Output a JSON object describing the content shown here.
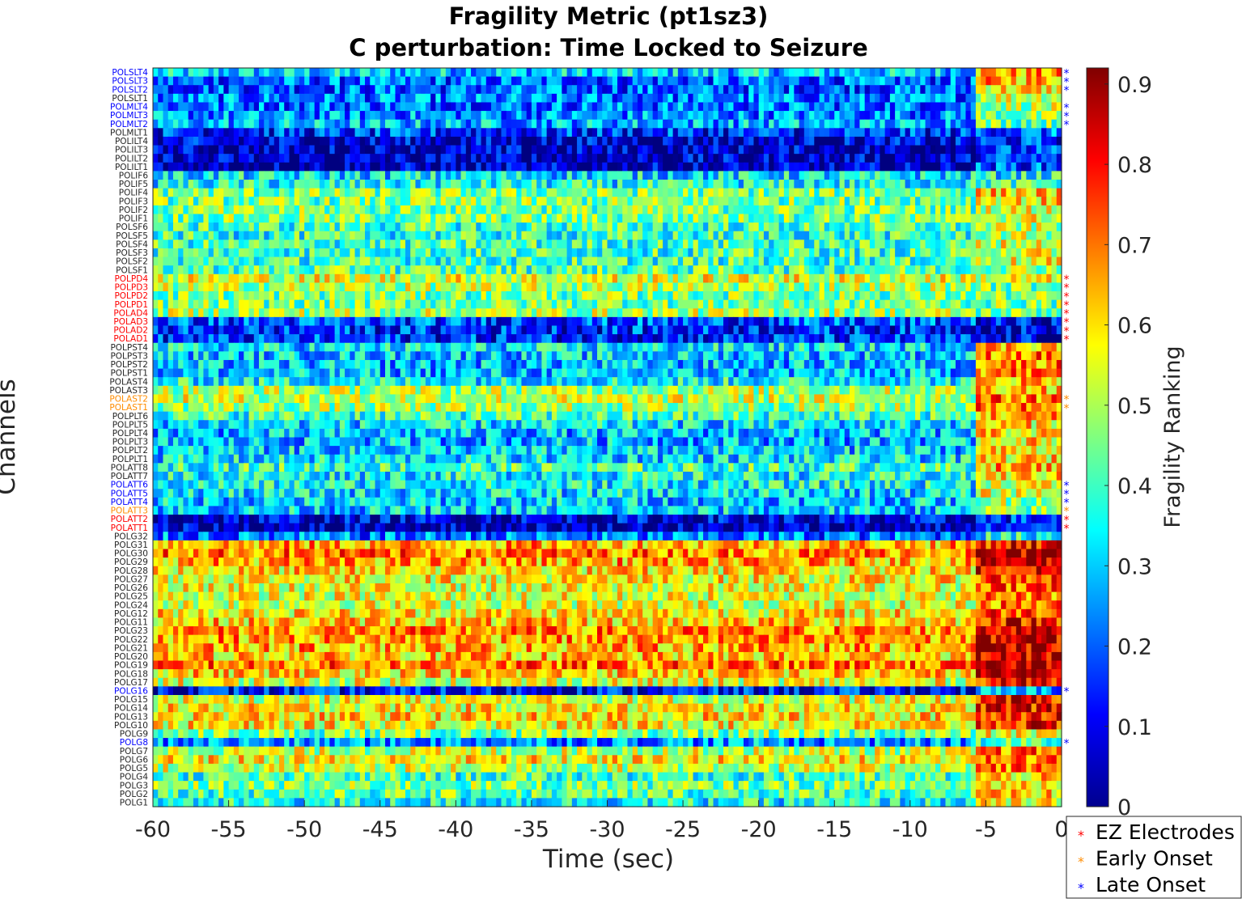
{
  "chart_data": {
    "type": "heatmap",
    "title": [
      "Fragility Metric (pt1sz3)",
      "C perturbation:  Time Locked to Seizure"
    ],
    "xlabel": "Time (sec)",
    "ylabel": "Channels",
    "x_range": [
      -60,
      0
    ],
    "x_ticks": [
      "-60",
      "-55",
      "-50",
      "-45",
      "-40",
      "-35",
      "-30",
      "-25",
      "-20",
      "-15",
      "-10",
      "-5",
      "0"
    ],
    "colorbar": {
      "label": "Fragility Ranking",
      "colormap": "jet",
      "range": [
        0,
        0.92
      ],
      "ticks": [
        "0",
        "0.1",
        "0.2",
        "0.3",
        "0.4",
        "0.5",
        "0.6",
        "0.7",
        "0.8",
        "0.9"
      ]
    },
    "seizure_onset_time": -5.5,
    "channels": [
      {
        "name": "POLSLT4",
        "group": "late",
        "pre": 0.3,
        "post": 0.65
      },
      {
        "name": "POLSLT3",
        "group": "late",
        "pre": 0.2,
        "post": 0.65
      },
      {
        "name": "POLSLT2",
        "group": "late",
        "pre": 0.2,
        "post": 0.6
      },
      {
        "name": "POLSLT1",
        "group": "none",
        "pre": 0.22,
        "post": 0.55
      },
      {
        "name": "POLMLT4",
        "group": "late",
        "pre": 0.22,
        "post": 0.5
      },
      {
        "name": "POLMLT3",
        "group": "late",
        "pre": 0.24,
        "post": 0.45
      },
      {
        "name": "POLMLT2",
        "group": "late",
        "pre": 0.28,
        "post": 0.45
      },
      {
        "name": "POLMLT1",
        "group": "none",
        "pre": 0.15,
        "post": 0.2
      },
      {
        "name": "POLILT4",
        "group": "none",
        "pre": 0.08,
        "post": 0.15
      },
      {
        "name": "POLILT3",
        "group": "none",
        "pre": 0.06,
        "post": 0.15
      },
      {
        "name": "POLILT2",
        "group": "none",
        "pre": 0.06,
        "post": 0.15
      },
      {
        "name": "POLILT1",
        "group": "none",
        "pre": 0.05,
        "post": 0.18
      },
      {
        "name": "POLIF6",
        "group": "none",
        "pre": 0.32,
        "post": 0.35
      },
      {
        "name": "POLIF5",
        "group": "none",
        "pre": 0.35,
        "post": 0.4
      },
      {
        "name": "POLIF4",
        "group": "none",
        "pre": 0.45,
        "post": 0.62
      },
      {
        "name": "POLIF3",
        "group": "none",
        "pre": 0.45,
        "post": 0.6
      },
      {
        "name": "POLIF2",
        "group": "none",
        "pre": 0.45,
        "post": 0.55
      },
      {
        "name": "POLIF1",
        "group": "none",
        "pre": 0.45,
        "post": 0.55
      },
      {
        "name": "POLSF6",
        "group": "none",
        "pre": 0.4,
        "post": 0.5
      },
      {
        "name": "POLSF5",
        "group": "none",
        "pre": 0.38,
        "post": 0.5
      },
      {
        "name": "POLSF4",
        "group": "none",
        "pre": 0.4,
        "post": 0.55
      },
      {
        "name": "POLSF3",
        "group": "none",
        "pre": 0.4,
        "post": 0.55
      },
      {
        "name": "POLSF2",
        "group": "none",
        "pre": 0.4,
        "post": 0.55
      },
      {
        "name": "POLSF1",
        "group": "none",
        "pre": 0.42,
        "post": 0.5
      },
      {
        "name": "POLPD4",
        "group": "ez",
        "pre": 0.55,
        "post": 0.55
      },
      {
        "name": "POLPD3",
        "group": "ez",
        "pre": 0.5,
        "post": 0.45
      },
      {
        "name": "POLPD2",
        "group": "ez",
        "pre": 0.45,
        "post": 0.45
      },
      {
        "name": "POLPD1",
        "group": "ez",
        "pre": 0.45,
        "post": 0.45
      },
      {
        "name": "POLAD4",
        "group": "ez",
        "pre": 0.5,
        "post": 0.45
      },
      {
        "name": "POLAD3",
        "group": "ez",
        "pre": 0.18,
        "post": 0.1
      },
      {
        "name": "POLAD2",
        "group": "ez",
        "pre": 0.15,
        "post": 0.1
      },
      {
        "name": "POLAD1",
        "group": "ez",
        "pre": 0.15,
        "post": 0.08
      },
      {
        "name": "POLPST4",
        "group": "none",
        "pre": 0.32,
        "post": 0.65
      },
      {
        "name": "POLPST3",
        "group": "none",
        "pre": 0.3,
        "post": 0.7
      },
      {
        "name": "POLPST2",
        "group": "none",
        "pre": 0.28,
        "post": 0.7
      },
      {
        "name": "POLPST1",
        "group": "none",
        "pre": 0.28,
        "post": 0.7
      },
      {
        "name": "POLAST4",
        "group": "none",
        "pre": 0.35,
        "post": 0.65
      },
      {
        "name": "POLAST3",
        "group": "none",
        "pre": 0.5,
        "post": 0.65
      },
      {
        "name": "POLAST2",
        "group": "early",
        "pre": 0.52,
        "post": 0.7
      },
      {
        "name": "POLAST1",
        "group": "early",
        "pre": 0.48,
        "post": 0.7
      },
      {
        "name": "POLPLT6",
        "group": "none",
        "pre": 0.4,
        "post": 0.65
      },
      {
        "name": "POLPLT5",
        "group": "none",
        "pre": 0.32,
        "post": 0.6
      },
      {
        "name": "POLPLT4",
        "group": "none",
        "pre": 0.28,
        "post": 0.6
      },
      {
        "name": "POLPLT3",
        "group": "none",
        "pre": 0.28,
        "post": 0.6
      },
      {
        "name": "POLPLT2",
        "group": "none",
        "pre": 0.3,
        "post": 0.6
      },
      {
        "name": "POLPLT1",
        "group": "none",
        "pre": 0.32,
        "post": 0.6
      },
      {
        "name": "POLATT8",
        "group": "none",
        "pre": 0.4,
        "post": 0.65
      },
      {
        "name": "POLATT7",
        "group": "none",
        "pre": 0.35,
        "post": 0.6
      },
      {
        "name": "POLATT6",
        "group": "late",
        "pre": 0.35,
        "post": 0.55
      },
      {
        "name": "POLATT5",
        "group": "late",
        "pre": 0.32,
        "post": 0.55
      },
      {
        "name": "POLATT4",
        "group": "late",
        "pre": 0.3,
        "post": 0.5
      },
      {
        "name": "POLATT3",
        "group": "early",
        "pre": 0.3,
        "post": 0.45
      },
      {
        "name": "POLATT2",
        "group": "ez",
        "pre": 0.08,
        "post": 0.15
      },
      {
        "name": "POLATT1",
        "group": "ez",
        "pre": 0.05,
        "post": 0.12
      },
      {
        "name": "POLG32",
        "group": "none",
        "pre": 0.22,
        "post": 0.35
      },
      {
        "name": "POLG31",
        "group": "none",
        "pre": 0.65,
        "post": 0.8
      },
      {
        "name": "POLG30",
        "group": "none",
        "pre": 0.7,
        "post": 0.85
      },
      {
        "name": "POLG29",
        "group": "none",
        "pre": 0.65,
        "post": 0.85
      },
      {
        "name": "POLG28",
        "group": "none",
        "pre": 0.6,
        "post": 0.8
      },
      {
        "name": "POLG27",
        "group": "none",
        "pre": 0.58,
        "post": 0.75
      },
      {
        "name": "POLG26",
        "group": "none",
        "pre": 0.55,
        "post": 0.75
      },
      {
        "name": "POLG25",
        "group": "none",
        "pre": 0.55,
        "post": 0.7
      },
      {
        "name": "POLG24",
        "group": "none",
        "pre": 0.55,
        "post": 0.7
      },
      {
        "name": "POLG12",
        "group": "none",
        "pre": 0.6,
        "post": 0.75
      },
      {
        "name": "POLG11",
        "group": "none",
        "pre": 0.62,
        "post": 0.8
      },
      {
        "name": "POLG23",
        "group": "none",
        "pre": 0.68,
        "post": 0.85
      },
      {
        "name": "POLG22",
        "group": "none",
        "pre": 0.66,
        "post": 0.85
      },
      {
        "name": "POLG21",
        "group": "none",
        "pre": 0.65,
        "post": 0.85
      },
      {
        "name": "POLG20",
        "group": "none",
        "pre": 0.62,
        "post": 0.85
      },
      {
        "name": "POLG19",
        "group": "none",
        "pre": 0.7,
        "post": 0.88
      },
      {
        "name": "POLG18",
        "group": "none",
        "pre": 0.62,
        "post": 0.85
      },
      {
        "name": "POLG17",
        "group": "none",
        "pre": 0.55,
        "post": 0.8
      },
      {
        "name": "POLG16",
        "group": "late",
        "pre": 0.12,
        "post": 0.25
      },
      {
        "name": "POLG15",
        "group": "none",
        "pre": 0.55,
        "post": 0.8
      },
      {
        "name": "POLG14",
        "group": "none",
        "pre": 0.58,
        "post": 0.8
      },
      {
        "name": "POLG13",
        "group": "none",
        "pre": 0.6,
        "post": 0.8
      },
      {
        "name": "POLG10",
        "group": "none",
        "pre": 0.58,
        "post": 0.78
      },
      {
        "name": "POLG9",
        "group": "none",
        "pre": 0.45,
        "post": 0.55
      },
      {
        "name": "POLG8",
        "group": "late",
        "pre": 0.25,
        "post": 0.4
      },
      {
        "name": "POLG7",
        "group": "none",
        "pre": 0.52,
        "post": 0.7
      },
      {
        "name": "POLG6",
        "group": "none",
        "pre": 0.58,
        "post": 0.72
      },
      {
        "name": "POLG5",
        "group": "none",
        "pre": 0.52,
        "post": 0.7
      },
      {
        "name": "POLG4",
        "group": "none",
        "pre": 0.4,
        "post": 0.6
      },
      {
        "name": "POLG3",
        "group": "none",
        "pre": 0.45,
        "post": 0.62
      },
      {
        "name": "POLG2",
        "group": "none",
        "pre": 0.42,
        "post": 0.6
      },
      {
        "name": "POLG1",
        "group": "none",
        "pre": 0.35,
        "post": 0.55
      }
    ],
    "legend": {
      "placement": "bottom-right",
      "items": [
        {
          "label": "EZ Electrodes",
          "group": "ez",
          "color": "#ff0000"
        },
        {
          "label": "Early Onset",
          "group": "early",
          "color": "#ff8c00"
        },
        {
          "label": "Late Onset",
          "group": "late",
          "color": "#0000ff"
        }
      ]
    },
    "marker_symbol": "*",
    "grid": false
  }
}
